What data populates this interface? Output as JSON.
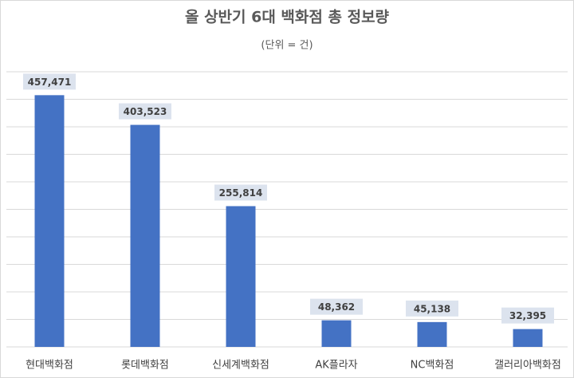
{
  "chart_data": {
    "type": "bar",
    "title": "올 상반기 6대 백화점 총 정보량",
    "subtitle": "(단위 = 건)",
    "categories": [
      "현대백화점",
      "롯데백화점",
      "신세계백화점",
      "AK플라자",
      "NC백화점",
      "갤러리아백화점"
    ],
    "values": [
      457471,
      403523,
      255814,
      48362,
      45138,
      32395
    ],
    "value_labels": [
      "457,471",
      "403,523",
      "255,814",
      "48,362",
      "45,138",
      "32,395"
    ],
    "color": "#4472c4",
    "ylim": [
      0,
      500000
    ],
    "yticks": [
      0,
      50000,
      100000,
      150000,
      200000,
      250000,
      300000,
      350000,
      400000,
      450000,
      500000
    ],
    "grid": true,
    "ytick_labels": false
  }
}
